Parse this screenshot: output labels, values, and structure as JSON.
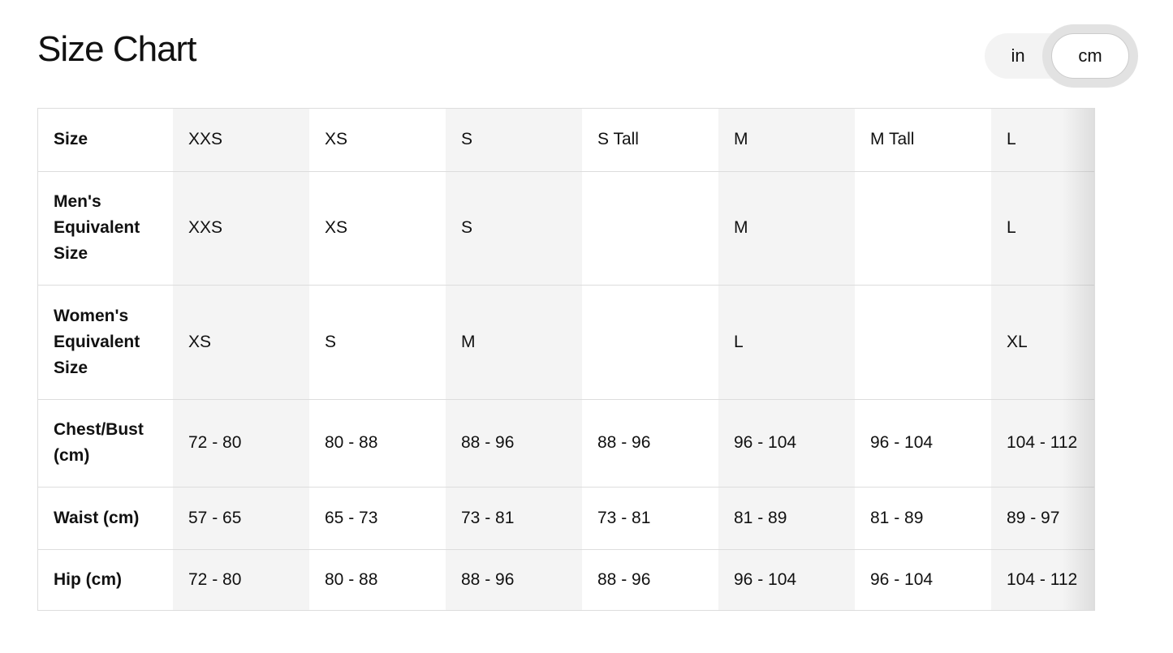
{
  "title": "Size Chart",
  "unit_toggle": {
    "options": [
      "in",
      "cm"
    ],
    "selected": "cm"
  },
  "table": {
    "rows": [
      {
        "label": "Size",
        "cells": [
          "XXS",
          "XS",
          "S",
          "S Tall",
          "M",
          "M Tall",
          "L"
        ]
      },
      {
        "label": "Men's Equivalent Size",
        "cells": [
          "XXS",
          "XS",
          "S",
          "",
          "M",
          "",
          "L"
        ]
      },
      {
        "label": "Women's Equivalent Size",
        "cells": [
          "XS",
          "S",
          "M",
          "",
          "L",
          "",
          "XL"
        ]
      },
      {
        "label": "Chest/Bust (cm)",
        "cells": [
          "72 - 80",
          "80 - 88",
          "88 - 96",
          "88 - 96",
          "96 - 104",
          "96 - 104",
          "104 - 112"
        ]
      },
      {
        "label": "Waist (cm)",
        "cells": [
          "57 - 65",
          "65 - 73",
          "73 - 81",
          "73 - 81",
          "81 - 89",
          "81 - 89",
          "89 - 97"
        ]
      },
      {
        "label": "Hip (cm)",
        "cells": [
          "72 - 80",
          "80 - 88",
          "88 - 96",
          "88 - 96",
          "96 - 104",
          "96 - 104",
          "104 - 112"
        ]
      }
    ]
  }
}
